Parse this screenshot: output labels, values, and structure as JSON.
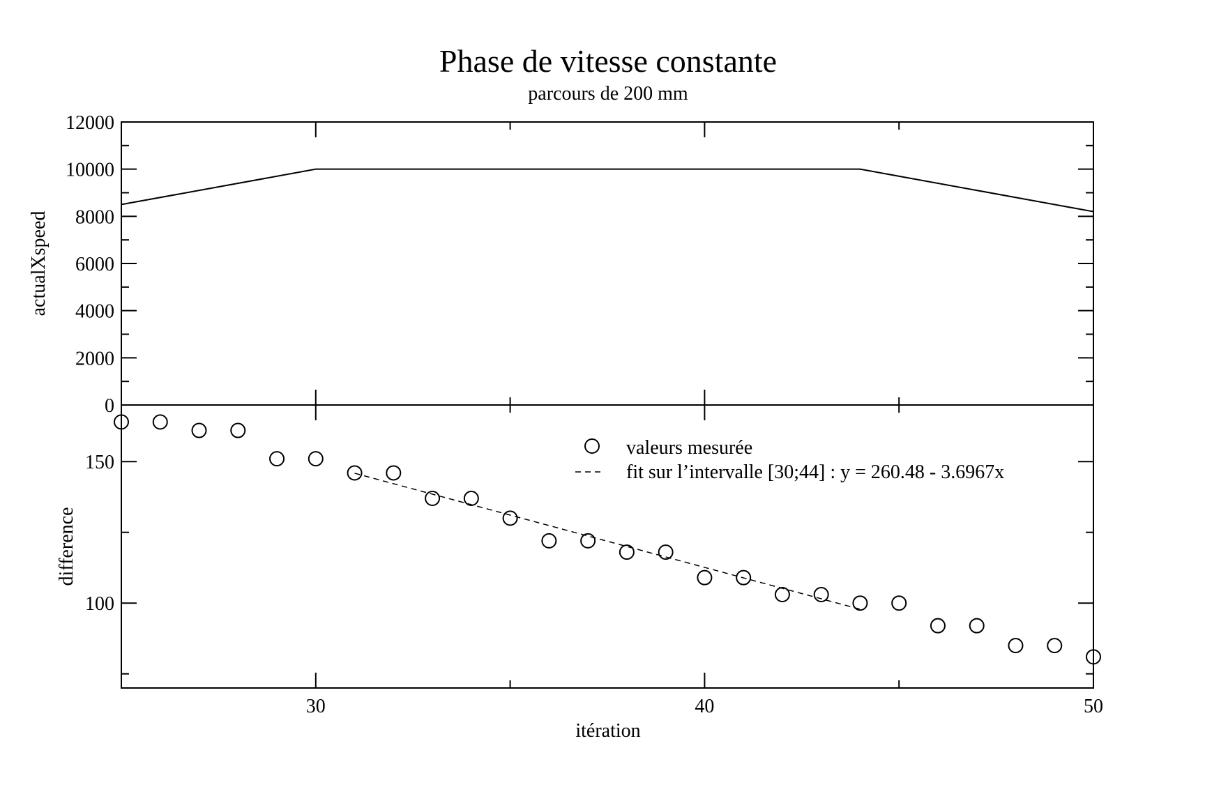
{
  "chart_data": {
    "type": "scatter",
    "title": "Phase de vitesse constante",
    "subtitle": "parcours de 200 mm",
    "x_axis": {
      "label": "itération",
      "range": [
        25,
        50
      ],
      "major_ticks": [
        30,
        40,
        50
      ],
      "tick_labels": [
        "30",
        "40",
        "50"
      ],
      "minor_ticks": [
        35,
        45
      ]
    },
    "panels": [
      {
        "id": "top",
        "type": "line",
        "ylabel": "actualXspeed",
        "ylim": [
          0,
          12000
        ],
        "y_major_ticks": [
          0,
          2000,
          4000,
          6000,
          8000,
          10000,
          12000
        ],
        "y_tick_labels": [
          "0",
          "2000",
          "4000",
          "6000",
          "8000",
          "10000",
          "12000"
        ],
        "y_minor_ticks": [
          1000,
          3000,
          5000,
          7000,
          9000,
          11000
        ],
        "series": [
          {
            "style": "solid",
            "x": [
              25,
              30,
              44,
              50
            ],
            "y": [
              8500,
              10000,
              10000,
              8200
            ]
          }
        ]
      },
      {
        "id": "bottom",
        "type": "scatter",
        "ylabel": "difference",
        "ylim": [
          70,
          170
        ],
        "y_major_ticks": [
          100,
          150
        ],
        "y_tick_labels": [
          "100",
          "150"
        ],
        "y_minor_ticks": [
          75,
          125
        ],
        "legend_position": "top-right",
        "series": [
          {
            "name": "valeurs mesurée",
            "marker": "open-circle",
            "x": [
              25,
              26,
              27,
              28,
              29,
              30,
              31,
              32,
              33,
              34,
              35,
              36,
              37,
              38,
              39,
              40,
              41,
              42,
              43,
              44,
              45,
              46,
              47,
              48,
              49,
              50
            ],
            "y": [
              164,
              164,
              161,
              161,
              151,
              151,
              146,
              146,
              137,
              137,
              130,
              122,
              122,
              118,
              118,
              109,
              109,
              103,
              103,
              100,
              100,
              92,
              92,
              85,
              85,
              81
            ]
          },
          {
            "name": "fit sur l’intervalle [30;44] : y = 260.48 - 3.6967x",
            "style": "dashed",
            "x": [
              31,
              44
            ],
            "y": [
              145.88,
              97.83
            ]
          }
        ]
      }
    ]
  }
}
